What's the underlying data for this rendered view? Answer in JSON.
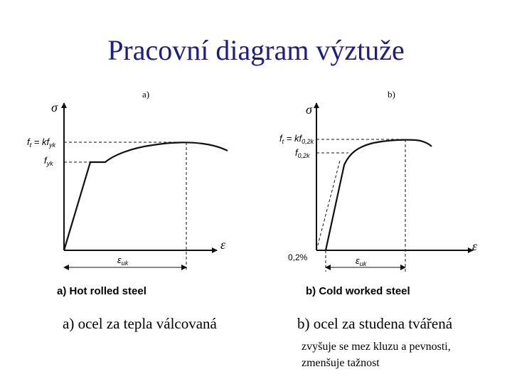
{
  "title": "Pracovní diagram výztuže",
  "panels": [
    {
      "tag": "a)",
      "sigma": "σ",
      "ft_label": [
        "f",
        "t",
        " = kf",
        "yk"
      ],
      "fy_label": [
        "f",
        "yk"
      ],
      "epsilon": "ε",
      "euk_label": [
        "ε",
        "uk"
      ],
      "figure_caption": "a)  Hot rolled steel",
      "caption": "a) ocel za tepla válcovaná"
    },
    {
      "tag": "b)",
      "sigma": "σ",
      "ft_label": [
        "f",
        "t",
        " = kf",
        "0,2k"
      ],
      "fy_label": [
        "f",
        "0,2k"
      ],
      "offset_label": "0,2%",
      "epsilon": "ε",
      "euk_label": [
        "ε",
        "uk"
      ],
      "figure_caption": "b)  Cold worked steel",
      "caption": "b) ocel za studena tvářená",
      "note": [
        "zvyšuje se mez kluzu a pevnosti,",
        "zmenšuje tažnost"
      ]
    }
  ]
}
